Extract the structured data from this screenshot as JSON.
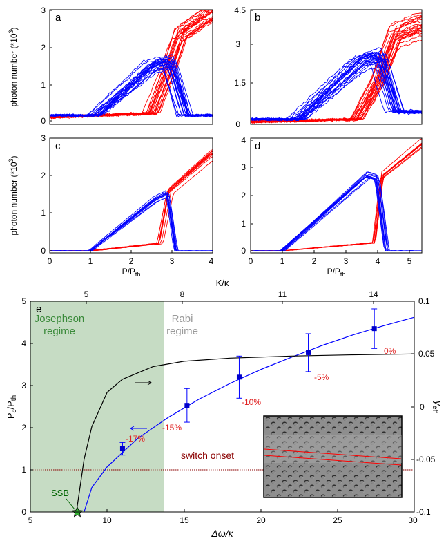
{
  "figure": {
    "panels": {
      "a": {
        "letter": "a",
        "ylabel": "photon number (*10",
        "ylabel_sup": "3",
        "ylabel_close": ")",
        "yticks": [
          "0",
          "1",
          "2",
          "3"
        ],
        "xticks": []
      },
      "b": {
        "letter": "b",
        "yticks": [
          "0",
          "1.5",
          "3",
          "4.5"
        ],
        "xticks": []
      },
      "c": {
        "letter": "c",
        "ylabel": "photon number (*10",
        "ylabel_sup": "3",
        "ylabel_close": ")",
        "yticks": [
          "0",
          "1",
          "2",
          "3"
        ],
        "xticks": [
          "0",
          "1",
          "2",
          "3",
          "4"
        ],
        "xlabel": "P/P",
        "xlabel_sub": "th"
      },
      "d": {
        "letter": "d",
        "yticks": [
          "0",
          "1",
          "2",
          "3",
          "4"
        ],
        "xticks": [
          "0",
          "1",
          "2",
          "3",
          "4",
          "5"
        ],
        "xlabel": "P/P",
        "xlabel_sub": "th"
      }
    },
    "panel_e": {
      "letter": "e",
      "top_axis_label": "K/κ",
      "top_ticks": [
        "5",
        "8",
        "11",
        "14"
      ],
      "left_ticks": [
        "0",
        "1",
        "2",
        "3",
        "4",
        "5"
      ],
      "right_ticks": [
        "-0.1",
        "-0.05",
        "0",
        "0.05",
        "0.1"
      ],
      "bottom_ticks": [
        "5",
        "10",
        "15",
        "20",
        "25",
        "30"
      ],
      "left_label": "P",
      "left_label_sub": "s",
      "left_label_tail": "/P",
      "left_label_sub2": "th",
      "right_label": "γ",
      "right_label_sub": "eff",
      "bottom_label": "Δω/κ",
      "josephson_line1": "Josephson",
      "josephson_line2": "regime",
      "rabi_line1": "Rabi",
      "rabi_line2": "regime",
      "switch_onset": "switch onset",
      "ssb": "SSB",
      "point_labels": [
        "-17%",
        "-15%",
        "-10%",
        "-5%",
        "0%"
      ]
    },
    "colors": {
      "blue": "#0000ff",
      "red": "#ff0000",
      "green_region": "#c6dcc4",
      "black": "#000000",
      "dark_red": "#8b0000",
      "gray_text": "#9a9a9a",
      "green_text": "#3a8a3a"
    }
  },
  "chart_data": [
    {
      "type": "line",
      "panel": "a",
      "ylabel": "photon number (*10^3)",
      "ylim": [
        0,
        3
      ],
      "xlim": [
        0,
        4
      ],
      "series": [
        {
          "color": "blue",
          "description_points": {
            "x": [
              0,
              1.1,
              2.5,
              2.9,
              3.3,
              4
            ],
            "y": [
              0.15,
              0.15,
              1.5,
              1.6,
              0.15,
              0.15
            ]
          }
        },
        {
          "color": "red",
          "description_points": {
            "x": [
              0,
              2.5,
              2.9,
              3.2,
              4
            ],
            "y": [
              0.1,
              0.2,
              1.3,
              2.3,
              2.9
            ]
          }
        }
      ]
    },
    {
      "type": "line",
      "panel": "b",
      "ylim": [
        0,
        4.5
      ],
      "xlim": [
        0,
        4
      ],
      "series": [
        {
          "color": "blue",
          "description_points": {
            "x": [
              0,
              1.1,
              2.6,
              3.0,
              3.4,
              4
            ],
            "y": [
              0.2,
              0.2,
              2.5,
              2.7,
              0.5,
              0.5
            ]
          }
        },
        {
          "color": "red",
          "description_points": {
            "x": [
              0,
              2.5,
              3.0,
              3.4,
              4
            ],
            "y": [
              0.1,
              0.2,
              1.7,
              3.5,
              3.9
            ]
          }
        }
      ]
    },
    {
      "type": "line",
      "panel": "c",
      "xlabel": "P/Pth",
      "ylabel": "photon number (*10^3)",
      "ylim": [
        0,
        3
      ],
      "xlim": [
        0,
        4
      ],
      "series": [
        {
          "color": "blue",
          "description_points": {
            "x": [
              0,
              1.0,
              2.6,
              2.9,
              3.1,
              4
            ],
            "y": [
              0,
              0,
              1.35,
              1.5,
              0,
              0
            ]
          }
        },
        {
          "color": "red",
          "description_points": {
            "x": [
              0,
              1.0,
              2.7,
              2.95,
              4
            ],
            "y": [
              0,
              0,
              0.2,
              1.6,
              2.6
            ]
          }
        }
      ]
    },
    {
      "type": "line",
      "panel": "d",
      "xlabel": "P/Pth",
      "ylim": [
        0,
        4.2
      ],
      "xlim": [
        0,
        5.4
      ],
      "series": [
        {
          "color": "blue",
          "description_points": {
            "x": [
              0,
              1.0,
              3.7,
              4.0,
              4.3,
              5.4
            ],
            "y": [
              0,
              0,
              2.8,
              2.7,
              0,
              0
            ]
          }
        },
        {
          "color": "red",
          "description_points": {
            "x": [
              0,
              1.0,
              3.9,
              4.15,
              5.4
            ],
            "y": [
              0,
              0,
              0.3,
              2.8,
              4.0
            ]
          }
        }
      ]
    },
    {
      "type": "scatter",
      "panel": "e",
      "xlabel": "Δω/κ",
      "ylabel": "Ps/Pth",
      "y2label": "γeff",
      "top_xlabel": "K/κ",
      "xlim": [
        5,
        30
      ],
      "ylim": [
        0,
        5
      ],
      "y2lim": [
        -0.1,
        0.1
      ],
      "series": [
        {
          "name": "",
          "color": "blue",
          "x": [
            11.0,
            15.2,
            18.6,
            23.1,
            27.4
          ],
          "y": [
            1.5,
            2.53,
            3.2,
            3.78,
            4.35
          ],
          "yerr": [
            0.15,
            0.4,
            0.5,
            0.45,
            0.47
          ]
        },
        {
          "name": "",
          "color": "blue",
          "type": "line",
          "x": [
            8.5,
            9,
            10,
            12,
            14,
            16,
            18,
            20,
            22,
            24,
            26,
            28,
            30
          ],
          "y": [
            0,
            0.58,
            1.07,
            1.75,
            2.25,
            2.68,
            3.05,
            3.38,
            3.67,
            3.95,
            4.2,
            4.42,
            4.62
          ]
        },
        {
          "name": "",
          "color": "black",
          "type": "line",
          "axis": "right",
          "x": [
            8,
            8.5,
            9,
            10,
            11,
            13,
            15,
            18,
            22,
            26,
            30
          ],
          "y": [
            -0.1,
            -0.05,
            -0.019,
            0.0136,
            0.026,
            0.038,
            0.043,
            0.046,
            0.048,
            0.0492,
            0.05
          ]
        }
      ],
      "annotations": {
        "josephson_regime_x": [
          5,
          13.6
        ],
        "switch_onset_y": 1,
        "ssb_point": [
          8,
          0
        ]
      }
    }
  ]
}
